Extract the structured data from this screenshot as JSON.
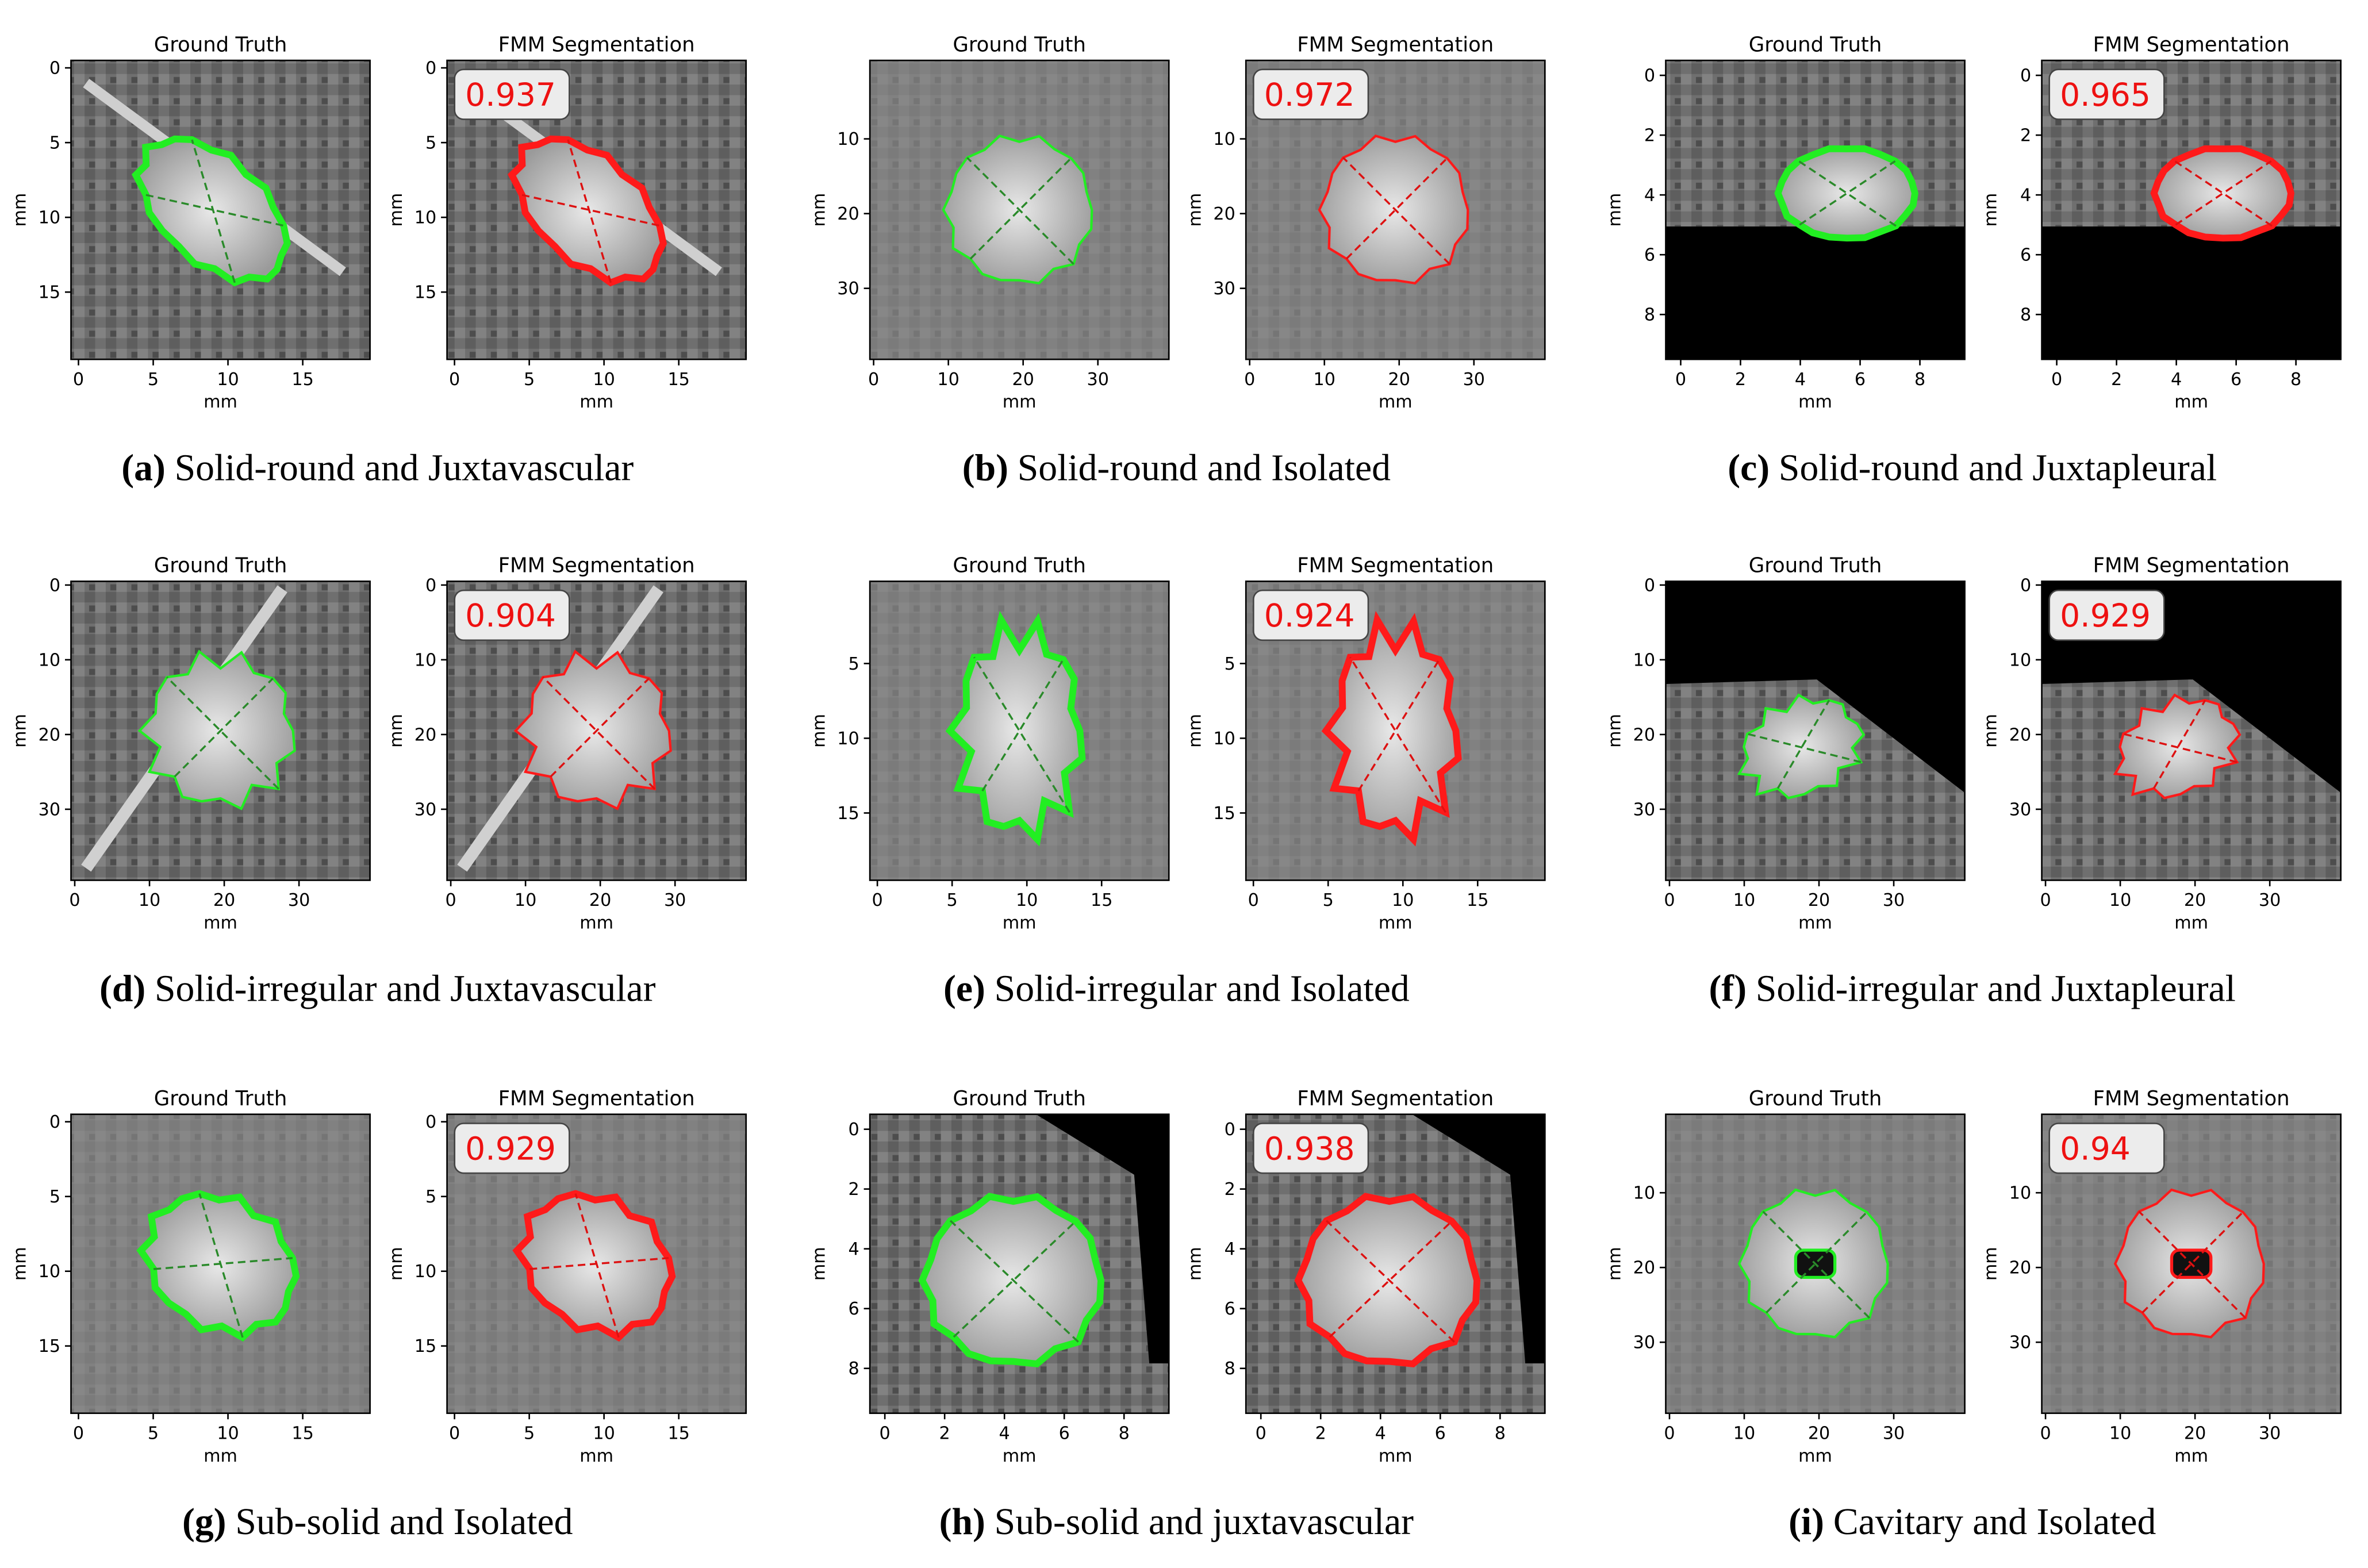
{
  "panels": [
    {
      "label": "(a)",
      "caption": "Solid-round and Juxtavascular",
      "score": "0.937",
      "plots": [
        {
          "title": "Ground Truth",
          "xlabel": "mm",
          "ylabel": "mm",
          "xlim": [
            -0.5,
            19.5
          ],
          "ylim": [
            19.5,
            -0.5
          ],
          "xticks": [
            0,
            5,
            10,
            15
          ],
          "yticks": [
            0,
            5,
            10,
            15
          ]
        },
        {
          "title": "FMM Segmentation",
          "xlabel": "mm",
          "ylabel": "mm",
          "xlim": [
            -0.5,
            19.5
          ],
          "ylim": [
            19.5,
            -0.5
          ],
          "xticks": [
            0,
            5,
            10,
            15
          ],
          "yticks": [
            0,
            5,
            10,
            15
          ]
        }
      ]
    },
    {
      "label": "(b)",
      "caption": "Solid-round and Isolated",
      "score": "0.972",
      "plots": [
        {
          "title": "Ground Truth",
          "xlabel": "mm",
          "ylabel": "mm",
          "xlim": [
            -0.5,
            39.5
          ],
          "ylim": [
            39.5,
            -0.5
          ],
          "xticks": [
            0,
            10,
            20,
            30
          ],
          "yticks": [
            10,
            20,
            30
          ]
        },
        {
          "title": "FMM Segmentation",
          "xlabel": "mm",
          "ylabel": "mm",
          "xlim": [
            -0.5,
            39.5
          ],
          "ylim": [
            39.5,
            -0.5
          ],
          "xticks": [
            0,
            10,
            20,
            30
          ],
          "yticks": [
            10,
            20,
            30
          ]
        }
      ]
    },
    {
      "label": "(c)",
      "caption": "Solid-round and Juxtapleural",
      "score": "0.965",
      "plots": [
        {
          "title": "Ground Truth",
          "xlabel": "mm",
          "ylabel": "mm",
          "xlim": [
            -0.5,
            9.5
          ],
          "ylim": [
            9.5,
            -0.5
          ],
          "xticks": [
            0,
            2,
            4,
            6,
            8
          ],
          "yticks": [
            0,
            2,
            4,
            6,
            8
          ]
        },
        {
          "title": "FMM Segmentation",
          "xlabel": "mm",
          "ylabel": "mm",
          "xlim": [
            -0.5,
            9.5
          ],
          "ylim": [
            9.5,
            -0.5
          ],
          "xticks": [
            0,
            2,
            4,
            6,
            8
          ],
          "yticks": [
            0,
            2,
            4,
            6,
            8
          ]
        }
      ]
    },
    {
      "label": "(d)",
      "caption": "Solid-irregular and Juxtavascular",
      "score": "0.904",
      "plots": [
        {
          "title": "Ground Truth",
          "xlabel": "mm",
          "ylabel": "mm",
          "xlim": [
            -0.5,
            39.5
          ],
          "ylim": [
            39.5,
            -0.5
          ],
          "xticks": [
            0,
            10,
            20,
            30
          ],
          "yticks": [
            0,
            10,
            20,
            30
          ]
        },
        {
          "title": "FMM Segmentation",
          "xlabel": "mm",
          "ylabel": "mm",
          "xlim": [
            -0.5,
            39.5
          ],
          "ylim": [
            39.5,
            -0.5
          ],
          "xticks": [
            0,
            10,
            20,
            30
          ],
          "yticks": [
            0,
            10,
            20,
            30
          ]
        }
      ]
    },
    {
      "label": "(e)",
      "caption": "Solid-irregular and Isolated",
      "score": "0.924",
      "plots": [
        {
          "title": "Ground Truth",
          "xlabel": "mm",
          "ylabel": "mm",
          "xlim": [
            -0.5,
            19.5
          ],
          "ylim": [
            19.5,
            -0.5
          ],
          "xticks": [
            0,
            5,
            10,
            15
          ],
          "yticks": [
            5,
            10,
            15
          ]
        },
        {
          "title": "FMM Segmentation",
          "xlabel": "mm",
          "ylabel": "mm",
          "xlim": [
            -0.5,
            19.5
          ],
          "ylim": [
            19.5,
            -0.5
          ],
          "xticks": [
            0,
            5,
            10,
            15
          ],
          "yticks": [
            5,
            10,
            15
          ]
        }
      ]
    },
    {
      "label": "(f)",
      "caption": "Solid-irregular and Juxtapleural",
      "score": "0.929",
      "plots": [
        {
          "title": "Ground Truth",
          "xlabel": "mm",
          "ylabel": "mm",
          "xlim": [
            -0.5,
            39.5
          ],
          "ylim": [
            39.5,
            -0.5
          ],
          "xticks": [
            0,
            10,
            20,
            30
          ],
          "yticks": [
            0,
            10,
            20,
            30
          ]
        },
        {
          "title": "FMM Segmentation",
          "xlabel": "mm",
          "ylabel": "mm",
          "xlim": [
            -0.5,
            39.5
          ],
          "ylim": [
            39.5,
            -0.5
          ],
          "xticks": [
            0,
            10,
            20,
            30
          ],
          "yticks": [
            0,
            10,
            20,
            30
          ]
        }
      ]
    },
    {
      "label": "(g)",
      "caption": "Sub-solid and Isolated",
      "score": "0.929",
      "plots": [
        {
          "title": "Ground Truth",
          "xlabel": "mm",
          "ylabel": "mm",
          "xlim": [
            -0.5,
            19.5
          ],
          "ylim": [
            19.5,
            -0.5
          ],
          "xticks": [
            0,
            5,
            10,
            15
          ],
          "yticks": [
            0,
            5,
            10,
            15
          ]
        },
        {
          "title": "FMM Segmentation",
          "xlabel": "mm",
          "ylabel": "mm",
          "xlim": [
            -0.5,
            19.5
          ],
          "ylim": [
            19.5,
            -0.5
          ],
          "xticks": [
            0,
            5,
            10,
            15
          ],
          "yticks": [
            0,
            5,
            10,
            15
          ]
        }
      ]
    },
    {
      "label": "(h)",
      "caption": "Sub-solid and juxtavascular",
      "score": "0.938",
      "plots": [
        {
          "title": "Ground Truth",
          "xlabel": "mm",
          "ylabel": "mm",
          "xlim": [
            -0.5,
            9.5
          ],
          "ylim": [
            9.5,
            -0.5
          ],
          "xticks": [
            0,
            2,
            4,
            6,
            8
          ],
          "yticks": [
            0,
            2,
            4,
            6,
            8
          ]
        },
        {
          "title": "FMM Segmentation",
          "xlabel": "mm",
          "ylabel": "mm",
          "xlim": [
            -0.5,
            9.5
          ],
          "ylim": [
            9.5,
            -0.5
          ],
          "xticks": [
            0,
            2,
            4,
            6,
            8
          ],
          "yticks": [
            0,
            2,
            4,
            6,
            8
          ]
        }
      ]
    },
    {
      "label": "(i)",
      "caption": "Cavitary and Isolated",
      "score": "0.94",
      "plots": [
        {
          "title": "Ground Truth",
          "xlabel": "mm",
          "ylabel": "mm",
          "xlim": [
            -0.5,
            39.5
          ],
          "ylim": [
            39.5,
            -0.5
          ],
          "xticks": [
            0,
            10,
            20,
            30
          ],
          "yticks": [
            10,
            20,
            30
          ]
        },
        {
          "title": "FMM Segmentation",
          "xlabel": "mm",
          "ylabel": "mm",
          "xlim": [
            -0.5,
            39.5
          ],
          "ylim": [
            39.5,
            -0.5
          ],
          "xticks": [
            0,
            10,
            20,
            30
          ],
          "yticks": [
            10,
            20,
            30
          ]
        }
      ]
    }
  ]
}
